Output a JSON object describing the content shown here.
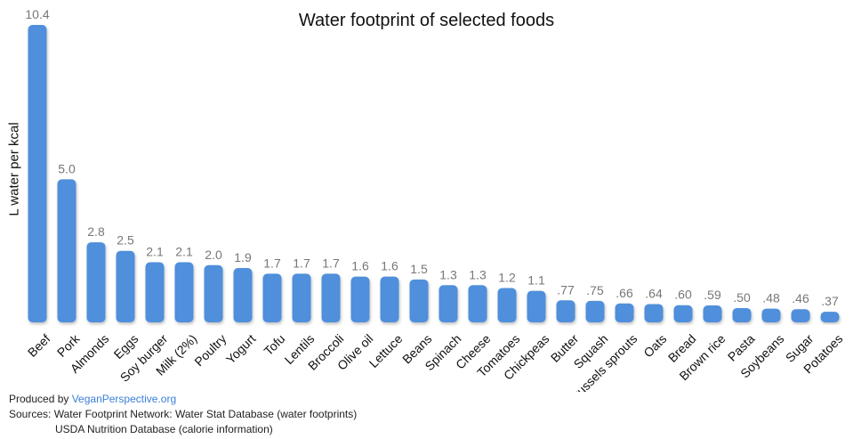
{
  "chart_data": {
    "type": "bar",
    "title": "Water footprint of selected foods",
    "xlabel": "",
    "ylabel": "L water per kcal",
    "ylim": [
      0,
      10.4
    ],
    "grid": false,
    "bar_color": "#4f8fdb",
    "value_label_color": "#777777",
    "categories": [
      "Beef",
      "Pork",
      "Almonds",
      "Eggs",
      "Soy burger",
      "Milk (2%)",
      "Poultry",
      "Yogurt",
      "Tofu",
      "Lentils",
      "Broccoli",
      "Olive oil",
      "Lettuce",
      "Beans",
      "Spinach",
      "Cheese",
      "Tomatoes",
      "Chickpeas",
      "Butter",
      "Squash",
      "Brussels sprouts",
      "Oats",
      "Bread",
      "Brown rice",
      "Pasta",
      "Soybeans",
      "Sugar",
      "Potatoes"
    ],
    "values": [
      10.4,
      5.0,
      2.8,
      2.5,
      2.1,
      2.1,
      2.0,
      1.9,
      1.7,
      1.7,
      1.7,
      1.6,
      1.6,
      1.5,
      1.3,
      1.3,
      1.2,
      1.1,
      0.77,
      0.75,
      0.66,
      0.64,
      0.6,
      0.59,
      0.5,
      0.48,
      0.46,
      0.37
    ],
    "value_labels": [
      "10.4",
      "5.0",
      "2.8",
      "2.5",
      "2.1",
      "2.1",
      "2.0",
      "1.9",
      "1.7",
      "1.7",
      "1.7",
      "1.6",
      "1.6",
      "1.5",
      "1.3",
      "1.3",
      "1.2",
      "1.1",
      ".77",
      ".75",
      ".66",
      ".64",
      ".60",
      ".59",
      ".50",
      ".48",
      ".46",
      ".37"
    ]
  },
  "footer": {
    "produced_by": "Produced by ",
    "site": "VeganPerspective.org",
    "sources_line1": "Sources: Water Footprint Network: Water Stat Database (water footprints)",
    "sources_line2": "USDA Nutrition Database (calorie information)"
  }
}
